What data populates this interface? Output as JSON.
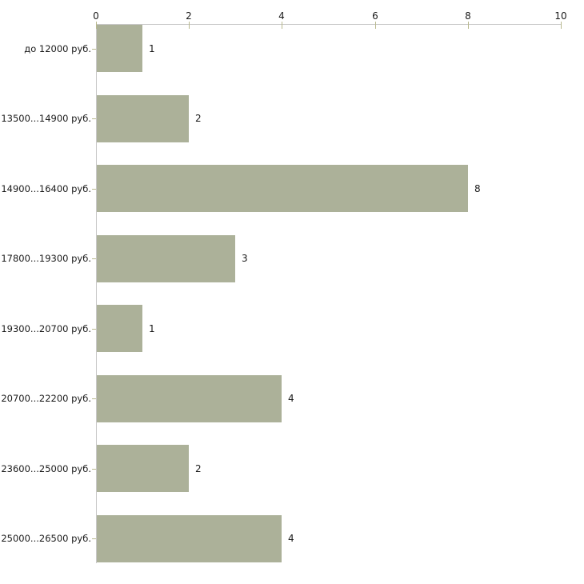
{
  "chart_data": {
    "type": "bar",
    "orientation": "horizontal",
    "title": "",
    "xlabel": "",
    "ylabel": "",
    "categories": [
      "до 12000 руб.",
      "13500...14900 руб.",
      "14900...16400 руб.",
      "17800...19300 руб.",
      "19300...20700 руб.",
      "20700...22200 руб.",
      "23600...25000 руб.",
      "25000...26500 руб."
    ],
    "values": [
      1,
      2,
      8,
      3,
      1,
      4,
      2,
      4
    ],
    "value_labels": [
      "1",
      "2",
      "8",
      "3",
      "1",
      "4",
      "2",
      "4"
    ],
    "x_axis": {
      "position": "top",
      "range": [
        0,
        10
      ],
      "ticks": [
        0,
        2,
        4,
        6,
        8,
        10
      ],
      "tick_labels": [
        "0",
        "2",
        "4",
        "6",
        "8",
        "10"
      ]
    },
    "grid": false,
    "legend": false,
    "colors": {
      "bar": "#acb199",
      "axis_line": "#c8c8c8",
      "tick": "#b9b98f",
      "text": "#1a1a1a",
      "background": "#ffffff"
    }
  }
}
